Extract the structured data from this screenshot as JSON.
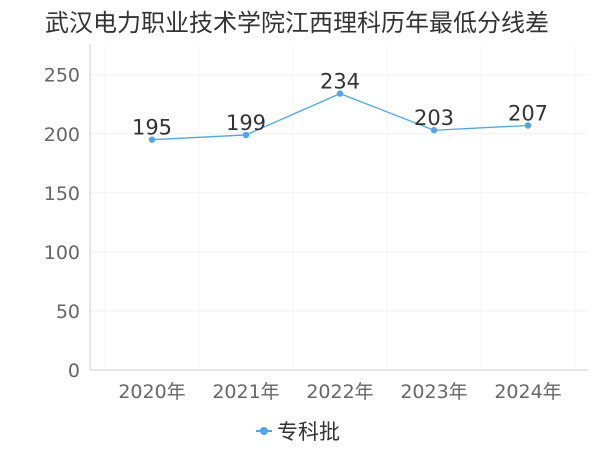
{
  "chart_data": {
    "type": "line",
    "title": "武汉电力职业技术学院江西理科历年最低分线差",
    "categories": [
      "2020年",
      "2021年",
      "2022年",
      "2023年",
      "2024年"
    ],
    "series": [
      {
        "name": "专科批",
        "values": [
          195,
          199,
          234,
          203,
          207
        ],
        "color": "#4da6ef"
      }
    ],
    "ylim": [
      0,
      250
    ],
    "yticks": [
      0,
      50,
      100,
      150,
      200,
      250
    ],
    "grid": true,
    "legend": "bottom-center",
    "data_labels": true
  }
}
